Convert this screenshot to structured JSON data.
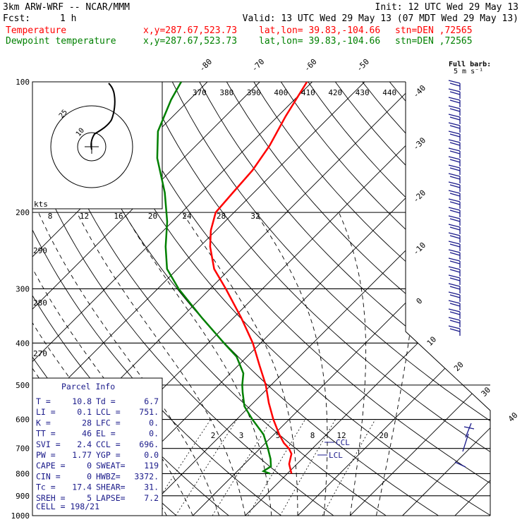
{
  "header": {
    "model": "3km ARW-WRF -- NCAR/MMM",
    "init": "Init: 12 UTC Wed 29 May 13",
    "fcst_label": "Fcst:",
    "fcst_value": "1 h",
    "valid": "Valid: 13 UTC Wed 29 May 13 (07 MDT Wed 29 May 13)"
  },
  "legend": {
    "temperature": {
      "label": "Temperature",
      "color": "#ff0000",
      "xy": "x,y=287.67,523.73",
      "latlon": "lat,lon= 39.83,-104.66",
      "stn": "stn=DEN ,72565"
    },
    "dewpoint": {
      "label": "Dewpoint temperature",
      "color": "#008000",
      "xy": "x,y=287.67,523.73",
      "latlon": "lat,lon= 39.83,-104.66",
      "stn": "stn=DEN ,72565"
    }
  },
  "barb_legend": {
    "line1": "Full barb:",
    "line2": "5 m s⁻¹"
  },
  "hodograph": {
    "units": "kts",
    "ring_labels": [
      "10",
      "25"
    ]
  },
  "parcel_info": {
    "title": "Parcel Info",
    "rows": [
      [
        "T   =",
        "10.8",
        "Td =",
        "6.7"
      ],
      [
        "LI  =",
        "0.1",
        "LCL =",
        "751."
      ],
      [
        "K   =",
        "28",
        "LFC =",
        "0."
      ],
      [
        "TT  =",
        "46",
        "EL  =",
        "0."
      ],
      [
        "SVI =",
        "2.4",
        "CCL =",
        "696."
      ],
      [
        "PW  =",
        "1.77",
        "YGP =",
        "0.0"
      ],
      [
        "CAPE =",
        "0",
        "SWEAT=",
        "119"
      ],
      [
        "CIN  =",
        "0",
        "HWBZ=",
        "3372."
      ],
      [
        "Tc  =",
        "17.4",
        "SHEAR=",
        "31."
      ],
      [
        "SREH =",
        "5",
        "LAPSE=",
        "7.2"
      ]
    ],
    "cell": "CELL = 198/21"
  },
  "markers": {
    "ccl": "CCL",
    "lcl": "LCL"
  },
  "chart_data": {
    "type": "line",
    "chart_kind": "skew-T log-P thermodynamic diagram",
    "y_axis": {
      "label": "",
      "scale": "log",
      "range": [
        1000,
        100
      ],
      "ticks": [
        100,
        200,
        300,
        400,
        500,
        600,
        700,
        800,
        900,
        1000
      ]
    },
    "isotherm_labels": [
      -80,
      -70,
      -60,
      -50,
      -40,
      -30,
      -20,
      -10,
      0,
      10,
      20,
      30,
      40
    ],
    "theta_labels_top": [
      370,
      380,
      390,
      400,
      410,
      420,
      430,
      440
    ],
    "theta_labels_left": [
      290,
      280,
      270
    ],
    "mixing_ratio_labels_200": [
      8,
      12,
      16,
      20,
      24,
      28,
      32
    ],
    "mixing_ratio_labels_700": [
      2,
      3,
      5,
      8,
      12,
      20
    ],
    "series": [
      {
        "name": "Temperature",
        "color": "#ff0000",
        "points": [
          [
            800,
            10.8
          ],
          [
            760,
            8.5
          ],
          [
            720,
            7.0
          ],
          [
            700,
            5.5
          ],
          [
            680,
            3.5
          ],
          [
            650,
            1.0
          ],
          [
            600,
            -3.0
          ],
          [
            550,
            -7.0
          ],
          [
            500,
            -11.0
          ],
          [
            450,
            -16.0
          ],
          [
            400,
            -21.5
          ],
          [
            350,
            -28.5
          ],
          [
            300,
            -37.0
          ],
          [
            270,
            -43.0
          ],
          [
            240,
            -48.0
          ],
          [
            220,
            -51.0
          ],
          [
            200,
            -53.5
          ],
          [
            180,
            -54.0
          ],
          [
            160,
            -54.5
          ],
          [
            140,
            -56.0
          ],
          [
            120,
            -58.5
          ],
          [
            100,
            -61.0
          ]
        ]
      },
      {
        "name": "Dewpoint temperature",
        "color": "#008000",
        "points": [
          [
            800,
            6.7
          ],
          [
            790,
            5.0
          ],
          [
            770,
            5.5
          ],
          [
            740,
            4.0
          ],
          [
            700,
            1.5
          ],
          [
            650,
            -2.0
          ],
          [
            600,
            -7.0
          ],
          [
            560,
            -11.0
          ],
          [
            520,
            -14.0
          ],
          [
            500,
            -15.5
          ],
          [
            470,
            -17.5
          ],
          [
            430,
            -22.0
          ],
          [
            400,
            -27.0
          ],
          [
            350,
            -36.0
          ],
          [
            300,
            -46.0
          ],
          [
            270,
            -52.0
          ],
          [
            240,
            -56.5
          ],
          [
            210,
            -61.0
          ],
          [
            180,
            -67.0
          ],
          [
            150,
            -75.0
          ],
          [
            130,
            -80.0
          ],
          [
            110,
            -83.5
          ],
          [
            100,
            -85.0
          ]
        ]
      }
    ]
  }
}
